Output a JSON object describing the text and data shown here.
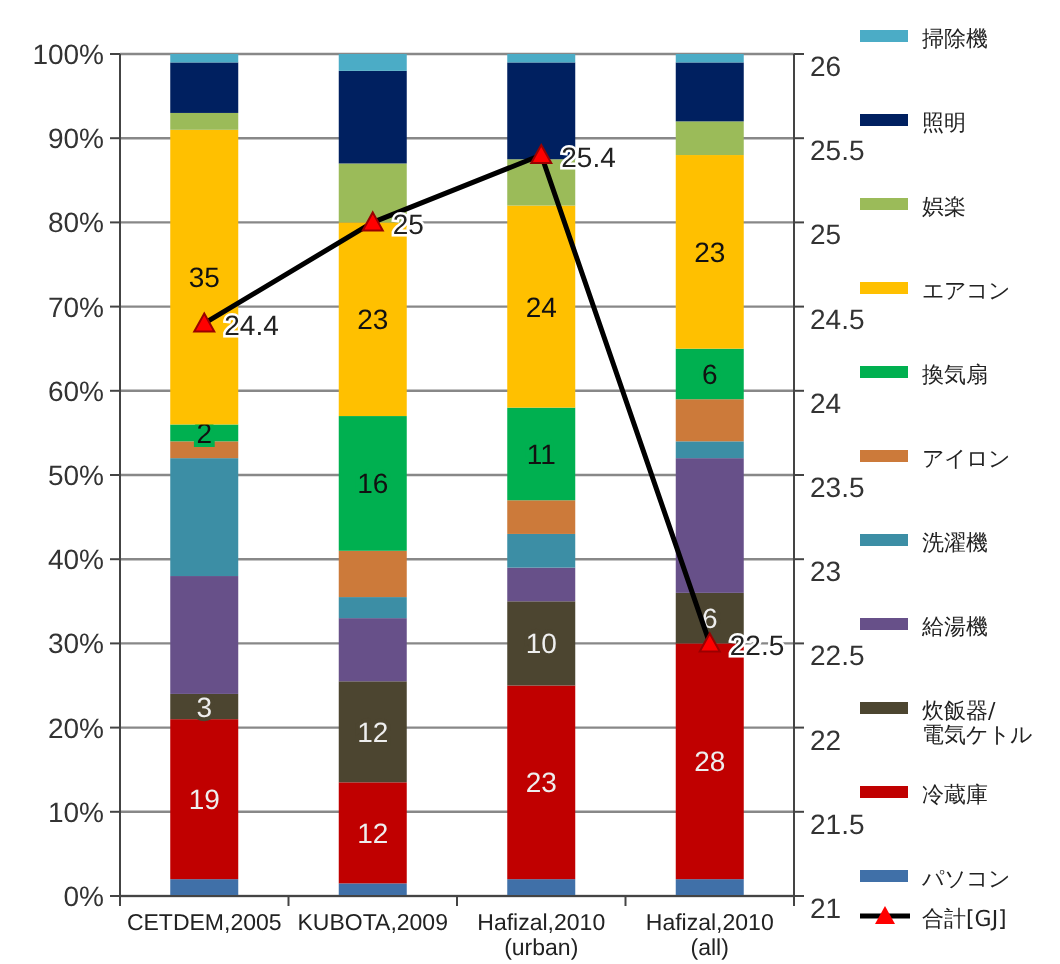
{
  "chart_data": {
    "type": "bar",
    "stacked": true,
    "categories": [
      "CETDEM,2005",
      "KUBOTA,2009",
      "Hafizal,2010\n(urban)",
      "Hafizal,2010\n(all)"
    ],
    "ylim": [
      0,
      100
    ],
    "yticks": [
      {
        "value": 0,
        "label": "0%"
      },
      {
        "value": 10,
        "label": "10%"
      },
      {
        "value": 20,
        "label": "20%"
      },
      {
        "value": 30,
        "label": "30%"
      },
      {
        "value": 40,
        "label": "40%"
      },
      {
        "value": 50,
        "label": "50%"
      },
      {
        "value": 60,
        "label": "60%"
      },
      {
        "value": 70,
        "label": "70%"
      },
      {
        "value": 80,
        "label": "80%"
      },
      {
        "value": 90,
        "label": "90%"
      },
      {
        "value": 100,
        "label": "100%"
      }
    ],
    "y2lim": [
      21,
      26
    ],
    "y2ticks": [
      21,
      21.5,
      22,
      22.5,
      23,
      23.5,
      24,
      24.5,
      25,
      25.5,
      26
    ],
    "grid": "y",
    "legend": "right",
    "series": [
      {
        "name": "パソコン",
        "color": "#4070a8",
        "values": [
          2,
          1.5,
          2,
          2
        ],
        "value_labels": [
          null,
          null,
          null,
          null
        ]
      },
      {
        "name": "冷蔵庫",
        "color": "#c00000",
        "values": [
          19,
          12,
          23,
          28
        ],
        "value_labels": [
          "19",
          "12",
          "23",
          "28"
        ]
      },
      {
        "name": "炊飯器/\n電気ケトル",
        "color": "#4c4530",
        "values": [
          3,
          12,
          10,
          6
        ],
        "value_labels": [
          "3",
          "12",
          "10",
          "6"
        ]
      },
      {
        "name": "給湯機",
        "color": "#675089",
        "values": [
          14,
          7.5,
          4,
          16
        ],
        "value_labels": [
          null,
          null,
          null,
          null
        ]
      },
      {
        "name": "洗濯機",
        "color": "#3c8ea5",
        "values": [
          14,
          2.5,
          4,
          2
        ],
        "value_labels": [
          null,
          null,
          null,
          null
        ]
      },
      {
        "name": "アイロン",
        "color": "#cc7a3a",
        "values": [
          2,
          5.5,
          4,
          5
        ],
        "value_labels": [
          null,
          null,
          null,
          null
        ]
      },
      {
        "name": "換気扇",
        "color": "#00b050",
        "values": [
          2,
          16,
          11,
          6
        ],
        "value_labels": [
          "2",
          "16",
          "11",
          "6"
        ]
      },
      {
        "name": "エアコン",
        "color": "#ffc000",
        "values": [
          35,
          23,
          24,
          23
        ],
        "value_labels": [
          "35",
          "23",
          "24",
          "23"
        ]
      },
      {
        "name": "娯楽",
        "color": "#9bbb59",
        "values": [
          2,
          7,
          5.5,
          4
        ],
        "value_labels": [
          null,
          null,
          null,
          null
        ]
      },
      {
        "name": "照明",
        "color": "#002060",
        "values": [
          6,
          11,
          11.5,
          7
        ],
        "value_labels": [
          null,
          null,
          null,
          null
        ]
      },
      {
        "name": "掃除機",
        "color": "#4bacc6",
        "values": [
          1,
          2,
          1,
          1
        ],
        "value_labels": [
          null,
          null,
          null,
          null
        ]
      },
      {
        "name": "合計[GJ]",
        "type": "line",
        "axis": "y2",
        "color": "#000000",
        "marker": "triangle",
        "values": [
          24.4,
          25,
          25.4,
          22.5
        ],
        "value_labels": [
          "24.4",
          "25",
          "25.4",
          "22.5"
        ]
      }
    ]
  }
}
